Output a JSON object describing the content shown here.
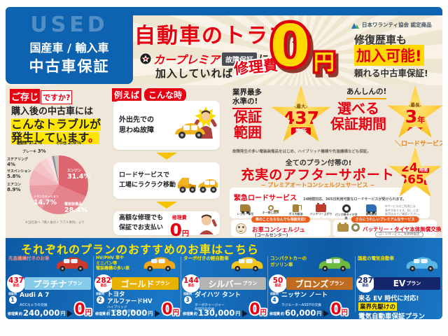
{
  "header": {
    "watermark": "USED",
    "badge_line1": "国産車 / 輸入車",
    "badge_line2": "中古車保証",
    "title": "自動車のトラブル",
    "brand": "カープレミア",
    "brand_badge": "故障保証",
    "particle": "に",
    "joined": "加入していれば",
    "repair_word": "修理費",
    "zero": "0",
    "yen": "円",
    "cert": "日本ワランティ協会 認定商品",
    "rep1": "修復歴車も",
    "rep2": "加入可能!",
    "rep3": "頼れる中古車保証!"
  },
  "know": {
    "q_boxed": "ご存じ",
    "q_rest": "ですか?",
    "l1": "購入後の中古車には",
    "l2": "こんなトラブルが",
    "l3": "発生しています",
    "l3_period": "。",
    "source": "※当社調べ「購入後のトラブル事例」より"
  },
  "chart_data": {
    "type": "pie",
    "title": "購入後の中古車に発生しているトラブルの内訳",
    "labels": [
      "エンジン",
      "電装装備品",
      "トランスミッション",
      "エアコン",
      "サスペンション",
      "ステアリング",
      "ブレーキ",
      "駆動系",
      "その他"
    ],
    "values": [
      31.4,
      28.4,
      14.7,
      8.9,
      5.8,
      4,
      3,
      1.2,
      2.6
    ],
    "unit": "%",
    "colors": [
      "#dd6570",
      "#e5838c",
      "#eb9ba3",
      "#f1b2b8",
      "#f4c2c6",
      "#f6d1d4",
      "#f9e0e2",
      "#8f8f8f",
      "#c9c5bf"
    ],
    "legend": false
  },
  "example": {
    "head_boxed": "例えば",
    "head_rest": "こんな時",
    "step1": [
      "外出先での",
      "思わぬ故障"
    ],
    "step2": [
      "ロードサービスで",
      "工場にラクラク移動"
    ],
    "step3": [
      "高額な修理でも",
      "保証でお支払い"
    ],
    "step3_fee_label": "修理費",
    "step3_zero": "0",
    "step3_yen": "円"
  },
  "features": {
    "coverage": {
      "lead": [
        "業界最多",
        "水準の!"
      ],
      "title": [
        "保証",
        "範囲"
      ],
      "star_top": "＼最大／",
      "star_num": "437",
      "star_unit": "箇所"
    },
    "period": {
      "lead": "あんしんの!",
      "title": [
        "選べる",
        "保証期間"
      ],
      "star_top": "＼最長／",
      "star_num": "3",
      "star_mid": "年",
      "star_unit": "保証"
    },
    "note": "故障発生の多い電装装備品をはじめ、ハイブリッド機構や先進機構なども保証。",
    "support": {
      "lead": "全てのプラン付帯の!",
      "title": "充実のアフターサポート",
      "sub": "− プレミアオートコンシェルジュサービス −"
    },
    "road": {
      "label": "＼ロードサービス／",
      "num1": "24",
      "unit1": "時間",
      "num2": "365",
      "unit2": "日"
    },
    "emergency": {
      "title": "緊急ロードサービス",
      "desc": "24時間対応、365日利用可能なロードサービスが受けられます。",
      "items": [
        {
          "icon": "tow",
          "label": "レッカー牽引"
        },
        {
          "icon": "key",
          "label": "キー閉じ込み"
        },
        {
          "icon": "fuel",
          "label": "ガス欠給油"
        },
        {
          "icon": "batt",
          "label": "バッテリー上がり"
        },
        {
          "icon": "tire",
          "label": "パンク時タイヤ交換"
        },
        {
          "icon": "carrier",
          "label": "車両搬送"
        }
      ],
      "note": [
        "※サービスのご利用には",
        "条件があります。詳しくは",
        "販売店までご確認ください。"
      ]
    },
    "concierge": {
      "pill": "車のことならなんでも相談対応!",
      "title": "お車コンシェルジュ",
      "sub": "(コールセンター)"
    },
    "battery": {
      "pill": "さらにうれしいプレミアムなサービス",
      "title": "バッテリー・タイヤ本体無償交換",
      "sub": "ロードサービスご利用時限定"
    }
  },
  "plans": {
    "header": "それぞれのプランのおすすめのお車はこちら",
    "items": [
      {
        "target": [
          "先進機構付きのお車"
        ],
        "target_color": "#ff8d7e",
        "parts": "437",
        "parts_unit": "部品",
        "parts_color": "#e60012",
        "name": "プラチナ",
        "suffix": "プラン",
        "banner": "#85cbe9",
        "car_color": "#d0382a",
        "ex_label": "保証例",
        "ex_no": "1",
        "car": [
          "Audi A 7"
        ],
        "item": [
          "ACCカメラの交換"
        ],
        "fee_label": "修理費",
        "approx": "約",
        "price": "240,000",
        "unit": "円",
        "zero": "0",
        "yen": "円"
      },
      {
        "target": [
          "HV/PHV 車や",
          "ミニバン等",
          "電装機構の多い車"
        ],
        "target_color": "#ffe600",
        "parts": "282",
        "parts_unit": "部品",
        "parts_color": "#e60012",
        "name": "ゴールド",
        "suffix": "プラン",
        "banner": "#e9b200",
        "car_color": "#f0a818",
        "ex_label": "保証例",
        "ex_no": "2",
        "car": [
          "トヨタ",
          "アルファードHV"
        ],
        "item": [
          "ハイブリッド",
          "バッテリーの交換"
        ],
        "fee_label": "修理費",
        "approx": "約",
        "price": "180,000",
        "unit": "円",
        "zero": "0",
        "yen": "円"
      },
      {
        "target": [
          "ターボ付きの軽自動車"
        ],
        "target_color": "#ffe600",
        "parts": "144",
        "parts_unit": "部品",
        "parts_color": "#e60012",
        "name": "シルバー",
        "suffix": "プラン",
        "banner": "#b3b3b3",
        "car_color": "#f2c51d",
        "ex_label": "保証例",
        "ex_no": "3",
        "car": [
          "ダイハツ タント"
        ],
        "item": [
          "ターボチャージャー",
          "ASSYの交換"
        ],
        "fee_label": "修理費",
        "approx": "約",
        "price": "130,000",
        "unit": "円",
        "zero": "0",
        "yen": "円"
      },
      {
        "target": [
          "コンパクトカーの",
          "ガソリン車"
        ],
        "target_color": "#ffe600",
        "parts": "50",
        "parts_unit": "部品",
        "parts_color": "#e60012",
        "name": "ブロンズ",
        "suffix": "プラン",
        "banner": "#c06c20",
        "car_color": "#6fb93c",
        "ex_label": "保証例",
        "ex_no": "4",
        "car": [
          "ニッサン ノート"
        ],
        "item": [
          "ラジエーターASSYの交換"
        ],
        "fee_label": "修理費",
        "approx": "約",
        "price": "60,000",
        "unit": "円",
        "zero": "0",
        "yen": "円"
      },
      {
        "target": [
          "国産の電気自動車"
        ],
        "target_color": "#ffe600",
        "parts": "287",
        "parts_unit": "部品",
        "parts_color": "#16266d",
        "name": "EV",
        "suffix": "プラン",
        "banner": "#16266d",
        "car_color": "#58b7e6",
        "ev1": "来る EV 時代に対応!",
        "ev2": "業界先駆けの",
        "ev3": "電気自動車保証プラン"
      }
    ]
  }
}
